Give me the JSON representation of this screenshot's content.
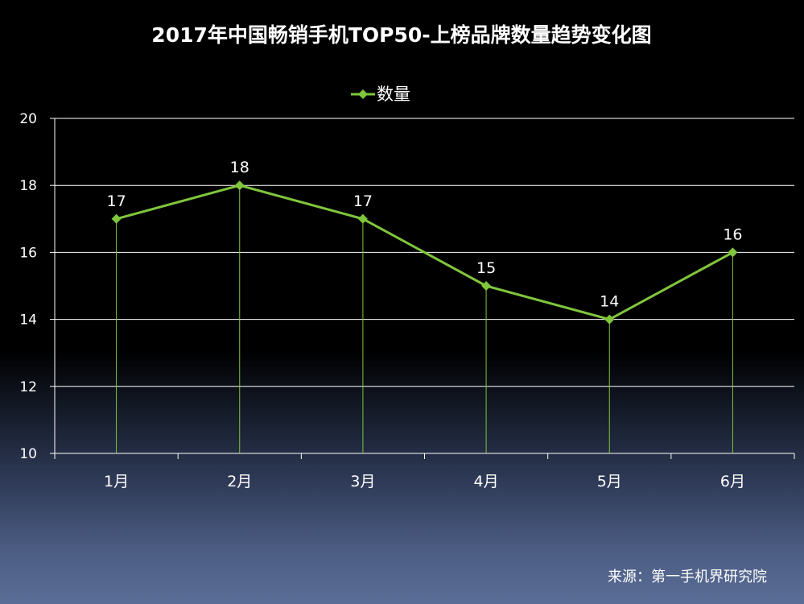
{
  "chart_data": {
    "type": "line",
    "title": "2017年中国畅销手机TOP50-上榜品牌数量趋势变化图",
    "categories": [
      "1月",
      "2月",
      "3月",
      "4月",
      "5月",
      "6月"
    ],
    "series": [
      {
        "name": "数量",
        "values": [
          17,
          18,
          17,
          15,
          14,
          16
        ]
      }
    ],
    "y_ticks": [
      "10",
      "12",
      "14",
      "16",
      "18",
      "20"
    ],
    "ylim": [
      10,
      20
    ],
    "grid": true,
    "drop_lines": true,
    "data_labels": true,
    "legend_position": "top-center",
    "line_color": "#80c63c",
    "grid_color": "#ffffff",
    "drop_line_color": "#80c63c"
  },
  "source_note": "来源：第一手机界研究院"
}
